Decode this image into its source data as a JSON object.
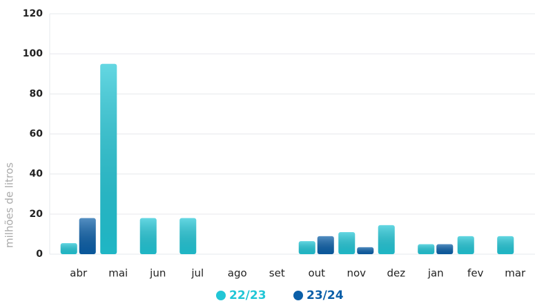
{
  "chart_data": {
    "type": "bar",
    "y_label": "milhões de litros",
    "categories": [
      "abr",
      "mai",
      "jun",
      "jul",
      "ago",
      "set",
      "out",
      "nov",
      "dez",
      "jan",
      "fev",
      "mar"
    ],
    "series": [
      {
        "name": "22/23",
        "color": "#22c6d6",
        "values": [
          5.5,
          95,
          18,
          18,
          null,
          null,
          6.5,
          11,
          14.5,
          5,
          9,
          9
        ]
      },
      {
        "name": "23/24",
        "color": "#0b5fa8",
        "values": [
          18,
          null,
          null,
          null,
          null,
          null,
          9,
          3.5,
          null,
          5,
          null,
          null
        ]
      }
    ],
    "ylim": [
      0,
      120
    ],
    "yticks": [
      0,
      20,
      40,
      60,
      80,
      100,
      120
    ],
    "grid": true
  }
}
